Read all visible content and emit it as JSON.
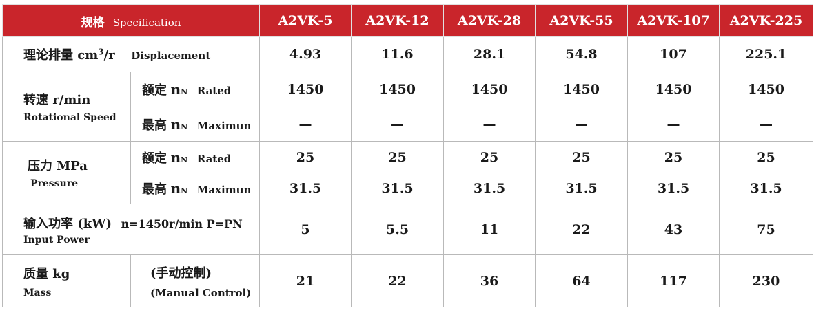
{
  "header": {
    "spec_zh": "规格",
    "spec_en": "Specification",
    "models": [
      "A2VK-5",
      "A2VK-12",
      "A2VK-28",
      "A2VK-55",
      "A2VK-107",
      "A2VK-225"
    ]
  },
  "displacement": {
    "label_zh": "理论排量 cm",
    "label_sup": "3",
    "label_unit": "/r",
    "label_en": "Displacement",
    "values": [
      "4.93",
      "11.6",
      "28.1",
      "54.8",
      "107",
      "225.1"
    ]
  },
  "speed": {
    "label_zh": "转速 r/min",
    "label_en": "Rotational Speed",
    "rated": {
      "zh": "额定",
      "n": "n",
      "sub": "N",
      "en": "Rated",
      "values": [
        "1450",
        "1450",
        "1450",
        "1450",
        "1450",
        "1450"
      ]
    },
    "max": {
      "zh": "最高",
      "n": "n",
      "sub": "N",
      "en": "Maximun",
      "values": [
        "—",
        "—",
        "—",
        "—",
        "—",
        "—"
      ]
    }
  },
  "pressure": {
    "label_zh": "压力 MPa",
    "label_en": "Pressure",
    "rated": {
      "zh": "额定",
      "n": "n",
      "sub": "N",
      "en": "Rated",
      "values": [
        "25",
        "25",
        "25",
        "25",
        "25",
        "25"
      ]
    },
    "max": {
      "zh": "最高",
      "n": "n",
      "sub": "N",
      "en": "Maximun",
      "values": [
        "31.5",
        "31.5",
        "31.5",
        "31.5",
        "31.5",
        "31.5"
      ]
    }
  },
  "power": {
    "label_zh": "输入功率 (kW)",
    "label_cond": "n=1450r/min  P=PN",
    "label_en": "Input Power",
    "values": [
      "5",
      "5.5",
      "11",
      "22",
      "43",
      "75"
    ]
  },
  "mass": {
    "label_zh": "质量 kg",
    "label_en": "Mass",
    "note_zh": "(手动控制)",
    "note_en": "(Manual Control)",
    "values": [
      "21",
      "22",
      "36",
      "64",
      "117",
      "230"
    ]
  }
}
